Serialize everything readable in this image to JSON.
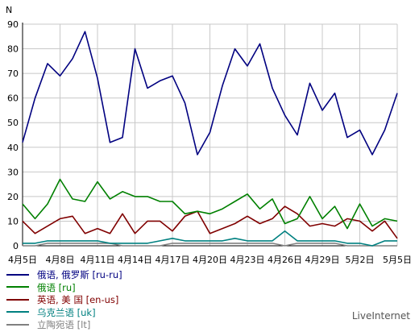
{
  "chart_data": {
    "type": "line",
    "ylabel": "N",
    "ylim": [
      0,
      90
    ],
    "yticks": [
      0,
      10,
      20,
      30,
      40,
      50,
      60,
      70,
      80,
      90
    ],
    "grid": true,
    "legend_position": "bottom-left",
    "x_tick_labels": [
      "4月5日",
      "4月8日",
      "4月11日",
      "4月14日",
      "4月17日",
      "4月20日",
      "4月23日",
      "4月26日",
      "4月29日",
      "5月2日",
      "5月5日"
    ],
    "x_tick_indices": [
      0,
      3,
      6,
      9,
      12,
      15,
      18,
      21,
      24,
      27,
      30
    ],
    "series": [
      {
        "name": "俄语, 俄罗斯 [ru-ru]",
        "color": "#000080",
        "values": [
          42,
          60,
          74,
          69,
          76,
          87,
          68,
          42,
          44,
          80,
          64,
          67,
          69,
          58,
          37,
          46,
          65,
          80,
          73,
          82,
          64,
          53,
          45,
          66,
          55,
          62,
          44,
          47,
          37,
          47,
          62
        ]
      },
      {
        "name": "俄语 [ru]",
        "color": "#008000",
        "values": [
          17,
          11,
          17,
          27,
          19,
          18,
          26,
          19,
          22,
          20,
          20,
          18,
          18,
          13,
          14,
          13,
          15,
          18,
          21,
          15,
          19,
          9,
          11,
          20,
          11,
          16,
          7,
          17,
          8,
          11,
          10
        ]
      },
      {
        "name": "英语, 美 国 [en-us]",
        "color": "#800000",
        "values": [
          10,
          5,
          8,
          11,
          12,
          5,
          7,
          5,
          13,
          5,
          10,
          10,
          6,
          12,
          14,
          5,
          7,
          9,
          12,
          9,
          11,
          16,
          13,
          8,
          9,
          8,
          11,
          10,
          6,
          10,
          3
        ]
      },
      {
        "name": "乌克兰语 [uk]",
        "color": "#008080",
        "values": [
          1,
          1,
          2,
          2,
          2,
          2,
          2,
          1,
          1,
          1,
          1,
          2,
          3,
          2,
          2,
          2,
          2,
          3,
          2,
          2,
          2,
          6,
          2,
          2,
          2,
          2,
          1,
          1,
          0,
          2,
          2
        ]
      },
      {
        "name": "立陶宛语 [lt]",
        "color": "#808080",
        "values": [
          0,
          0,
          1,
          1,
          1,
          1,
          1,
          1,
          0,
          0,
          0,
          0,
          1,
          1,
          1,
          1,
          1,
          1,
          1,
          1,
          1,
          0,
          1,
          1,
          1,
          1,
          0,
          0,
          0,
          0,
          0
        ]
      }
    ]
  },
  "brand": "LiveInternet"
}
